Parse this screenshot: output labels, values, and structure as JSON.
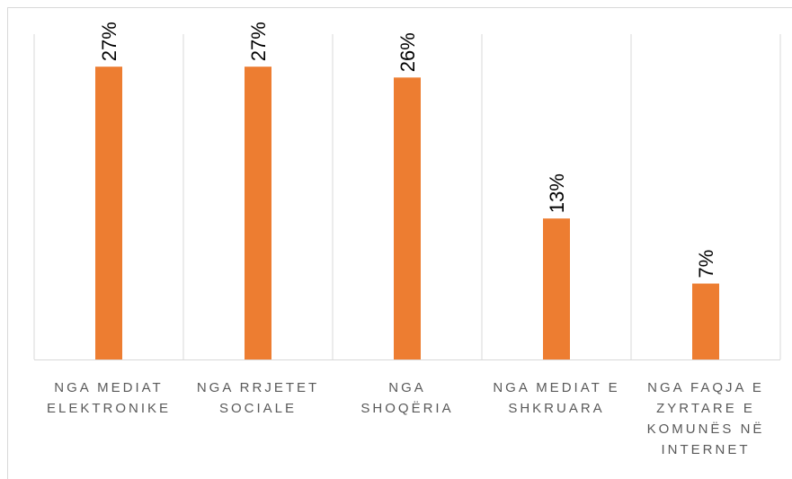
{
  "chart_data": {
    "type": "bar",
    "categories": [
      "NGA MEDIAT ELEKTRONIKE",
      "NGA RRJETET SOCIALE",
      "NGA SHOQËRIA",
      "NGA MEDIAT E SHKRUARA",
      "NGA FAQJA E ZYRTARE E KOMUNËS NË INTERNET"
    ],
    "values": [
      27,
      27,
      26,
      13,
      7
    ],
    "value_labels": [
      "27%",
      "27%",
      "26%",
      "13%",
      "7%"
    ],
    "color": "#ed7d31",
    "ylim": [
      0,
      30
    ]
  }
}
